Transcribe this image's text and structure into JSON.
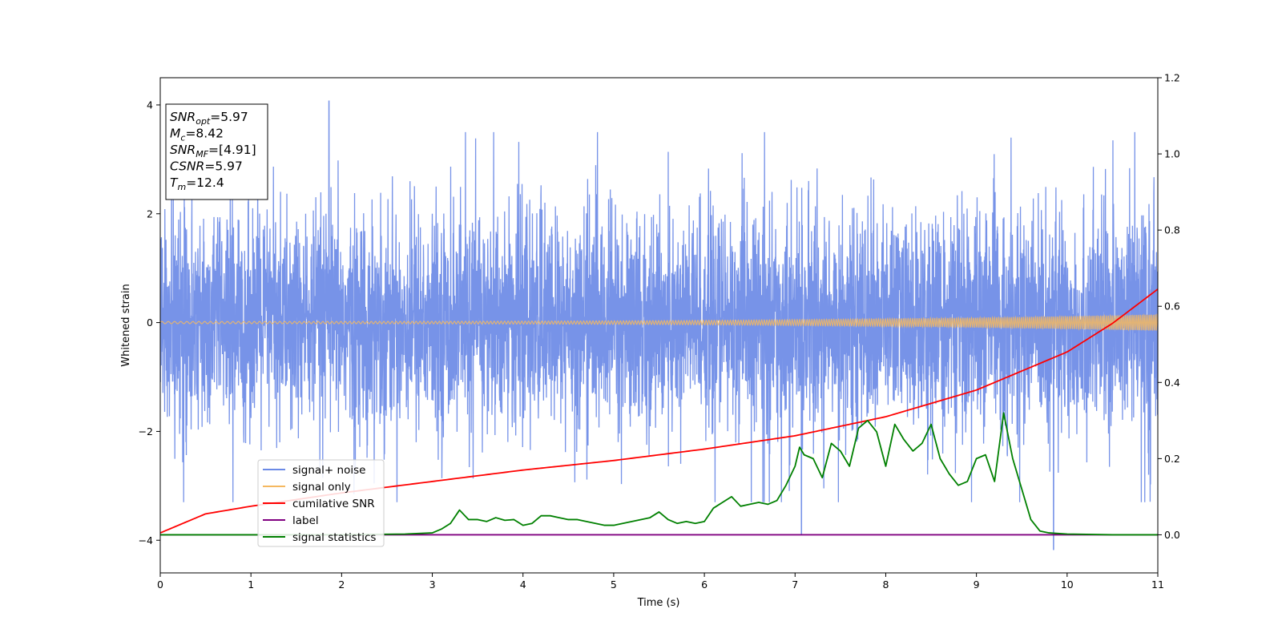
{
  "chart_data": {
    "type": "line",
    "xlabel": "Time (s)",
    "ylabel": "Whitened strain",
    "xlim": [
      0,
      11
    ],
    "ylim_left": [
      -4.6,
      4.5
    ],
    "ylim_right": [
      -0.1,
      1.2
    ],
    "x_ticks": [
      "0",
      "1",
      "2",
      "3",
      "4",
      "5",
      "6",
      "7",
      "8",
      "9",
      "10",
      "11"
    ],
    "y_left_ticks": [
      "4",
      "2",
      "0",
      "−2",
      "−4"
    ],
    "y_left_tick_values": [
      4,
      2,
      0,
      -2,
      -4
    ],
    "y_right_ticks": [
      "1.2",
      "1.0",
      "0.8",
      "0.6",
      "0.4",
      "0.2",
      "0.0"
    ],
    "y_right_tick_values": [
      1.2,
      1.0,
      0.8,
      0.6,
      0.4,
      0.2,
      0.0
    ],
    "grid": false,
    "legend_position": "lower-left",
    "info_box": [
      {
        "sym": "SNR",
        "sub": "opt",
        "val": "=5.97"
      },
      {
        "sym": "M",
        "sub": "c",
        "val": "=8.42"
      },
      {
        "sym": "SNR",
        "sub": "MF",
        "val": "=[4.91]"
      },
      {
        "sym": "CSNR",
        "sub": "",
        "val": "=5.97"
      },
      {
        "sym": "T",
        "sub": "m",
        "val": "=12.4"
      }
    ],
    "series": [
      {
        "name": "signal+ noise",
        "axis": "left",
        "color": "#6b8ae6",
        "description_stats": {
          "typical_range": [
            -2.0,
            2.0
          ],
          "max_spike": 4.07,
          "max_spike_x": 1.86,
          "min_spike": -4.17,
          "min_spike_x": 9.85
        }
      },
      {
        "name": "signal only",
        "axis": "left",
        "color": "#f5b860",
        "amplitude_start": 0.02,
        "amplitude_end": 0.15
      },
      {
        "name": "cumilative SNR",
        "axis": "right",
        "color": "#ff0000",
        "x": [
          0,
          0.5,
          1,
          2,
          3,
          4,
          5,
          6,
          7,
          8,
          9,
          10,
          10.5,
          11
        ],
        "values": [
          0.005,
          0.055,
          0.075,
          0.11,
          0.14,
          0.17,
          0.195,
          0.225,
          0.26,
          0.31,
          0.38,
          0.48,
          0.555,
          0.645
        ]
      },
      {
        "name": "label",
        "axis": "right",
        "color": "#800080",
        "x": [
          0,
          11
        ],
        "values": [
          0.0,
          0.0
        ]
      },
      {
        "name": "signal statistics",
        "axis": "right",
        "color": "#008000",
        "x": [
          0,
          1,
          2,
          2.7,
          3.0,
          3.1,
          3.2,
          3.3,
          3.4,
          3.5,
          3.6,
          3.7,
          3.8,
          3.9,
          4.0,
          4.1,
          4.2,
          4.3,
          4.4,
          4.5,
          4.6,
          4.7,
          4.8,
          4.9,
          5.0,
          5.1,
          5.2,
          5.3,
          5.4,
          5.5,
          5.6,
          5.7,
          5.8,
          5.9,
          6.0,
          6.1,
          6.2,
          6.3,
          6.4,
          6.5,
          6.6,
          6.7,
          6.8,
          6.9,
          7.0,
          7.05,
          7.1,
          7.2,
          7.3,
          7.4,
          7.5,
          7.6,
          7.7,
          7.8,
          7.9,
          8.0,
          8.1,
          8.2,
          8.3,
          8.4,
          8.5,
          8.6,
          8.7,
          8.8,
          8.9,
          9.0,
          9.1,
          9.2,
          9.3,
          9.4,
          9.5,
          9.6,
          9.7,
          9.8,
          10.0,
          10.5,
          11.0
        ],
        "values": [
          0.0,
          0.0,
          0.0,
          0.002,
          0.005,
          0.015,
          0.03,
          0.065,
          0.04,
          0.04,
          0.035,
          0.045,
          0.038,
          0.04,
          0.025,
          0.03,
          0.05,
          0.05,
          0.045,
          0.04,
          0.04,
          0.035,
          0.03,
          0.025,
          0.025,
          0.03,
          0.035,
          0.04,
          0.045,
          0.06,
          0.04,
          0.03,
          0.035,
          0.03,
          0.035,
          0.07,
          0.085,
          0.1,
          0.075,
          0.08,
          0.085,
          0.08,
          0.09,
          0.13,
          0.18,
          0.23,
          0.21,
          0.2,
          0.15,
          0.24,
          0.22,
          0.18,
          0.28,
          0.3,
          0.27,
          0.18,
          0.29,
          0.25,
          0.22,
          0.24,
          0.29,
          0.2,
          0.16,
          0.13,
          0.14,
          0.2,
          0.21,
          0.14,
          0.32,
          0.2,
          0.12,
          0.04,
          0.01,
          0.005,
          0.002,
          0.0,
          0.0
        ]
      }
    ]
  }
}
